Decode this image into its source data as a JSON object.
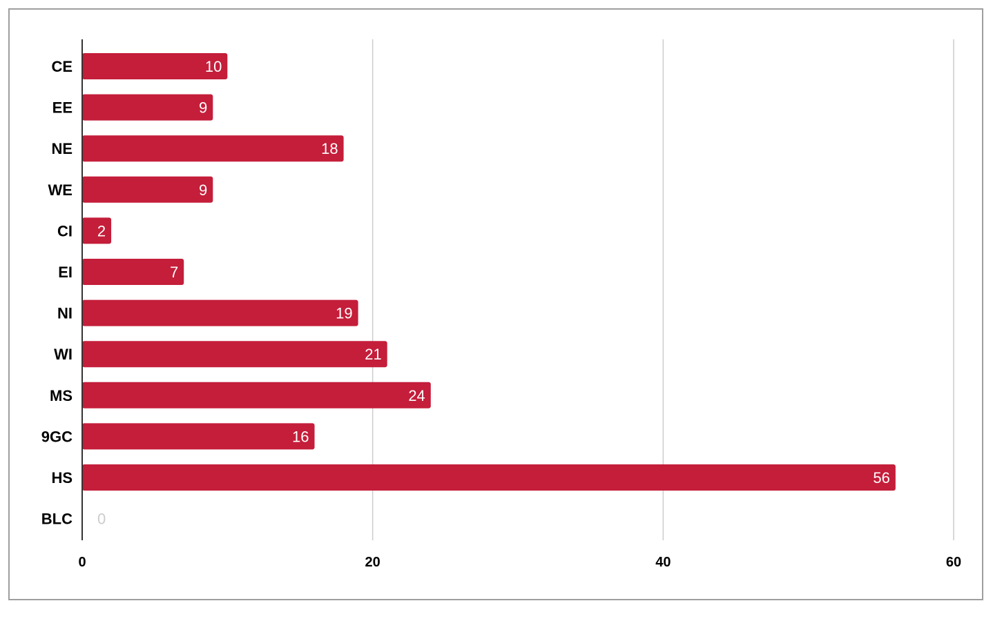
{
  "chart_data": {
    "type": "bar",
    "orientation": "horizontal",
    "categories": [
      "CE",
      "EE",
      "NE",
      "WE",
      "CI",
      "EI",
      "NI",
      "WI",
      "MS",
      "9GC",
      "HS",
      "BLC"
    ],
    "values": [
      10,
      9,
      18,
      9,
      2,
      7,
      19,
      21,
      24,
      16,
      56,
      0
    ],
    "xlim": [
      0,
      60
    ],
    "xticks": [
      "0",
      "20",
      "40",
      "60"
    ],
    "grid": true,
    "legend": "none",
    "title": "",
    "xlabel": "",
    "ylabel": "",
    "colors": {
      "bar": "#c41e3a",
      "label_inside": "#ffffff",
      "label_zero": "#cccccc",
      "grid": "#cccccc",
      "axis": "#333333"
    }
  }
}
